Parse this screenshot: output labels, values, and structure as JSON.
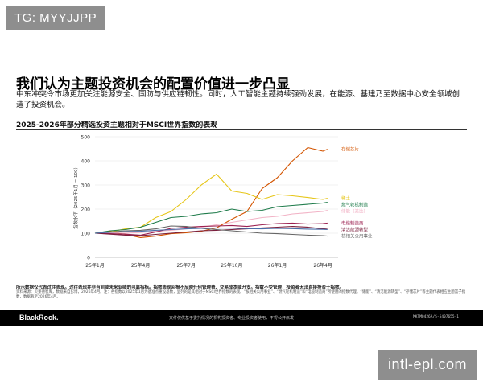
{
  "watermark": {
    "top_left": "TG: MYYJJPP",
    "bottom_right": "intl-epl.com"
  },
  "slide": {
    "title": "我们认为主题投资机会的配置价值进一步凸显",
    "subtitle": "中东冲突令市场更加关注能源安全、国防与供应链韧性。同时，人工智能主题持续强劲发展，在能源、基建乃至数据中心安全领域创造了投资机会。",
    "chart_heading": "2025-2026年部分精选投资主题相对于MSCI世界指数的表现",
    "footnote_bold": "所示数据仅代表过往表现。过往表现并非当前或未来业绩的可靠指标。指数表现回报不反映任何管理费、交易成本或开支。指数不受管理，投资者无法直接投资于指数。",
    "footnote": "资料来源：贝莱德智库，数据来自彭博，2026年4月。注：各指数以2025年1月为基准点重设基数，呈列的是其相对于MSCI世界指数的表现。“核相关公用事业”、“燃气轮机制造”和“电缆制造商”所使用的指数代理。“储能”、“清洁能源转型”、“存储芯片”等主题代表相应主题篮子指数，数据截至2026年4月。",
    "brand": "BlackRock.",
    "bottom_note": "文件仅供基于委托情况的机构投资者、专业投资者使用，不得公开派发",
    "page_code": "MKTM0426A/S-5407655-1"
  },
  "chart_data": {
    "type": "line",
    "title": "2025-2026年部分精选投资主题相对于MSCI世界指数的表现",
    "ylabel": "指数水平（2025年1月 = 100）",
    "xlabel": "",
    "ylim": [
      0,
      500
    ],
    "yticks": [
      0,
      100,
      200,
      300,
      400,
      500
    ],
    "xlim": [
      0,
      16
    ],
    "xticks": [
      {
        "x": 0,
        "label": "25年1月"
      },
      {
        "x": 3,
        "label": "25年4月"
      },
      {
        "x": 6,
        "label": "25年7月"
      },
      {
        "x": 9,
        "label": "25年10月"
      },
      {
        "x": 12,
        "label": "26年1月"
      },
      {
        "x": 15,
        "label": "26年4月"
      }
    ],
    "grid": true,
    "legend": "right end labels",
    "series": [
      {
        "name": "存储芯片",
        "color": "#d35400",
        "x": [
          0,
          1,
          2,
          3,
          4,
          5,
          6,
          7,
          8,
          9,
          10,
          11,
          12,
          13,
          14,
          15,
          15.3
        ],
        "values": [
          100,
          108,
          95,
          82,
          88,
          98,
          102,
          108,
          122,
          158,
          190,
          285,
          330,
          400,
          455,
          440,
          448
        ]
      },
      {
        "name": "稀土",
        "color": "#e6c619",
        "x": [
          0,
          1,
          2,
          3,
          4,
          5,
          6,
          7,
          8,
          9,
          10,
          11,
          12,
          13,
          14,
          15,
          15.3
        ],
        "values": [
          100,
          105,
          118,
          125,
          165,
          190,
          240,
          300,
          345,
          275,
          265,
          240,
          260,
          255,
          248,
          240,
          245
        ]
      },
      {
        "name": "燃气轮机制造",
        "color": "#1e7b4a",
        "x": [
          0,
          1,
          2,
          3,
          4,
          5,
          6,
          7,
          8,
          9,
          10,
          11,
          12,
          13,
          14,
          15,
          15.3
        ],
        "values": [
          100,
          110,
          115,
          125,
          145,
          165,
          170,
          180,
          185,
          200,
          190,
          195,
          210,
          215,
          220,
          225,
          228
        ]
      },
      {
        "name": "储能（类比）",
        "color": "#f2b3c6",
        "x": [
          0,
          1,
          2,
          3,
          4,
          5,
          6,
          7,
          8,
          9,
          10,
          11,
          12,
          13,
          14,
          15,
          15.3
        ],
        "values": [
          100,
          102,
          100,
          103,
          108,
          112,
          118,
          125,
          135,
          145,
          155,
          165,
          170,
          180,
          185,
          190,
          195
        ]
      },
      {
        "name": "电缆制造商",
        "color": "#9c2050",
        "x": [
          0,
          1,
          2,
          3,
          4,
          5,
          6,
          7,
          8,
          9,
          10,
          11,
          12,
          13,
          14,
          15,
          15.3
        ],
        "values": [
          100,
          98,
          96,
          92,
          105,
          120,
          125,
          128,
          130,
          132,
          128,
          135,
          140,
          142,
          138,
          140,
          142
        ]
      },
      {
        "name": "清洁能源转型",
        "color": "#7a1f3d",
        "x": [
          0,
          1,
          2,
          3,
          4,
          5,
          6,
          7,
          8,
          9,
          10,
          11,
          12,
          13,
          14,
          15,
          15.3
        ],
        "values": [
          100,
          96,
          92,
          90,
          95,
          100,
          105,
          110,
          112,
          115,
          118,
          122,
          125,
          128,
          125,
          118,
          120
        ]
      },
      {
        "name": "核相关公用事业",
        "color": "#666666",
        "x": [
          0,
          1,
          2,
          3,
          4,
          5,
          6,
          7,
          8,
          9,
          10,
          11,
          12,
          13,
          14,
          15,
          15.3
        ],
        "values": [
          100,
          105,
          110,
          112,
          118,
          130,
          128,
          120,
          115,
          110,
          105,
          100,
          98,
          95,
          92,
          90,
          88
        ]
      },
      {
        "name": "",
        "color": "#4a6ea8",
        "x": [
          0,
          1,
          2,
          3,
          4,
          5,
          6,
          7,
          8,
          9,
          10,
          11,
          12,
          13,
          14,
          15,
          15.3
        ],
        "values": [
          100,
          104,
          106,
          108,
          112,
          115,
          118,
          120,
          122,
          121,
          119,
          118,
          120,
          119,
          117,
          116,
          115
        ]
      }
    ]
  }
}
